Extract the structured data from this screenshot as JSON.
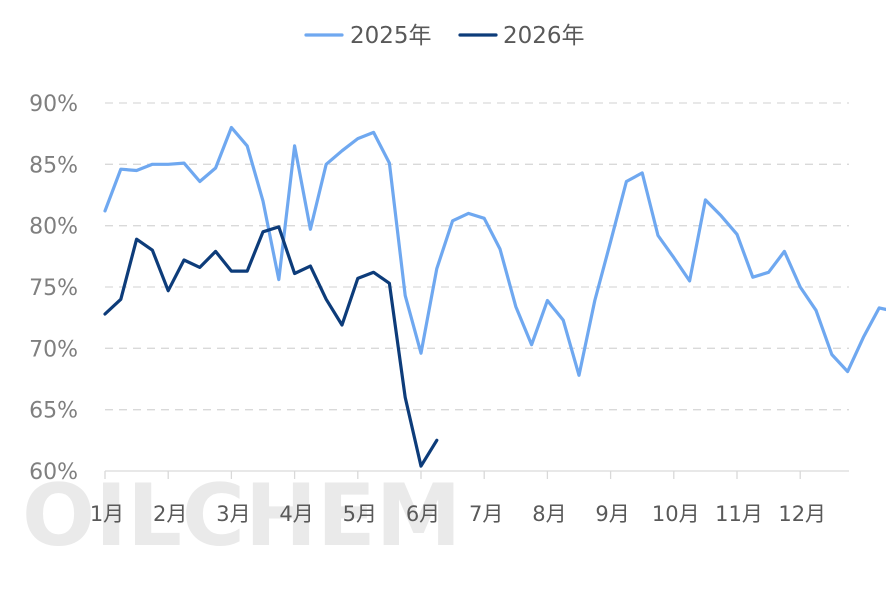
{
  "watermark": "OILCHEM",
  "chart_data": {
    "type": "line",
    "ylim": [
      60,
      90
    ],
    "yticks": [
      "60%",
      "65%",
      "70%",
      "75%",
      "80%",
      "85%",
      "90%"
    ],
    "ytick_values": [
      60,
      65,
      70,
      75,
      80,
      85,
      90
    ],
    "categories": [
      "1月",
      "2月",
      "3月",
      "4月",
      "5月",
      "6月",
      "7月",
      "8月",
      "9月",
      "10月",
      "11月",
      "12月"
    ],
    "legend_position": "top-center",
    "grid": "horizontal-dashed",
    "series": [
      {
        "name": "2025年",
        "color": "#6fa8f0",
        "x": [
          1.0,
          1.25,
          1.5,
          1.75,
          2.0,
          2.25,
          2.5,
          2.75,
          3.0,
          3.25,
          3.5,
          3.75,
          4.0,
          4.25,
          4.5,
          4.75,
          5.0,
          5.25,
          5.5,
          5.75,
          6.0,
          6.25,
          6.5,
          6.75,
          7.0,
          7.25,
          7.5,
          7.75,
          8.0,
          8.25,
          8.5,
          8.75,
          9.0,
          9.25,
          9.5,
          9.75,
          10.0,
          10.25,
          10.5,
          10.75,
          11.0,
          11.25,
          11.5,
          11.75,
          12.0,
          12.25,
          12.5,
          12.75,
          13.0,
          13.25,
          13.5,
          13.75
        ],
        "values": [
          81.2,
          84.6,
          84.5,
          85.0,
          85.0,
          85.1,
          83.6,
          84.7,
          88.0,
          86.5,
          82.0,
          75.6,
          86.5,
          79.7,
          85.0,
          86.1,
          87.1,
          87.6,
          85.1,
          74.3,
          69.6,
          76.5,
          80.4,
          81.0,
          80.6,
          78.1,
          73.4,
          70.3,
          73.9,
          72.3,
          67.8,
          73.9,
          78.7,
          83.6,
          84.3,
          79.2,
          77.4,
          75.5,
          82.1,
          80.8,
          79.3,
          75.8,
          76.2,
          77.9,
          75.0,
          73.1,
          69.5,
          68.1,
          70.9,
          73.3,
          73.0,
          73.8
        ]
      },
      {
        "name": "2026年",
        "color": "#0d3c7a",
        "x": [
          1.0,
          1.25,
          1.5,
          1.75,
          2.0,
          2.25,
          2.5,
          2.75,
          3.0,
          3.25,
          3.5,
          3.75,
          4.0,
          4.25,
          4.5,
          4.75,
          5.0,
          5.25,
          5.5,
          5.75,
          6.0,
          6.25
        ],
        "values": [
          72.8,
          74.0,
          78.9,
          78.0,
          74.7,
          77.2,
          76.6,
          77.9,
          76.3,
          76.3,
          79.5,
          79.9,
          76.1,
          76.7,
          74.0,
          71.9,
          75.7,
          76.2,
          75.3,
          66.0,
          60.4,
          62.5
        ]
      }
    ]
  }
}
